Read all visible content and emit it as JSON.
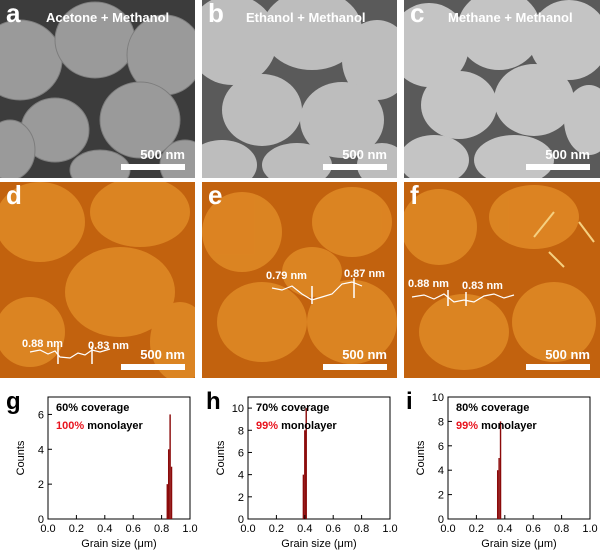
{
  "sem_panels": [
    {
      "label": "a",
      "title": "Acetone + Methanol",
      "scale": "500 nm"
    },
    {
      "label": "b",
      "title": "Ethanol + Methanol",
      "scale": "500 nm"
    },
    {
      "label": "c",
      "title": "Methane + Methanol",
      "scale": "500 nm"
    }
  ],
  "afm_panels": [
    {
      "label": "d",
      "height1": "0.88 nm",
      "height2": "0.83 nm",
      "scale": "500 nm"
    },
    {
      "label": "e",
      "height1": "0.79 nm",
      "height2": "0.87 nm",
      "scale": "500 nm"
    },
    {
      "label": "f",
      "height1": "0.88 nm",
      "height2": "0.83 nm",
      "scale": "500 nm"
    }
  ],
  "colors": {
    "sem_substrate_a": "#3c3c3c",
    "sem_grain_a": "#9a9a9a",
    "sem_substrate_bc": "#5a5a5a",
    "sem_grain_bc": "#bdbdbd",
    "afm_bg": "#c2620e",
    "afm_grain": "#e08a26",
    "bar": "#8b0a0a",
    "highlight": "#e8141e"
  },
  "chart_data": [
    {
      "type": "bar",
      "panel": "g",
      "annotation1": "60% coverage",
      "annotation2_pct": "100%",
      "annotation2_text": "monolayer",
      "xlabel": "Grain size (μm)",
      "ylabel": "Counts",
      "xlim": [
        0.0,
        1.0
      ],
      "ylim": [
        0,
        7
      ],
      "xticks": [
        "0.0",
        "0.2",
        "0.4",
        "0.6",
        "0.8",
        "1.0"
      ],
      "yticks": [
        "0",
        "2",
        "4",
        "6"
      ],
      "x": [
        0.84,
        0.85,
        0.86,
        0.87
      ],
      "values": [
        2,
        4,
        6,
        3
      ]
    },
    {
      "type": "bar",
      "panel": "h",
      "annotation1": "70% coverage",
      "annotation2_pct": "99%",
      "annotation2_text": "monolayer",
      "xlabel": "Grain size (μm)",
      "ylabel": "Counts",
      "xlim": [
        0.0,
        1.0
      ],
      "ylim": [
        0,
        11
      ],
      "xticks": [
        "0.0",
        "0.2",
        "0.4",
        "0.6",
        "0.8",
        "1.0"
      ],
      "yticks": [
        "0",
        "2",
        "4",
        "6",
        "8",
        "10"
      ],
      "x": [
        0.39,
        0.4,
        0.41
      ],
      "values": [
        4,
        8,
        10
      ]
    },
    {
      "type": "bar",
      "panel": "i",
      "annotation1": "80% coverage",
      "annotation2_pct": "99%",
      "annotation2_text": "monolayer",
      "xlabel": "Grain size (μm)",
      "ylabel": "Counts",
      "xlim": [
        0.0,
        1.0
      ],
      "ylim": [
        0,
        10
      ],
      "xticks": [
        "0.0",
        "0.2",
        "0.4",
        "0.6",
        "0.8",
        "1.0"
      ],
      "yticks": [
        "0",
        "2",
        "4",
        "6",
        "8",
        "10"
      ],
      "x": [
        0.35,
        0.36,
        0.37
      ],
      "values": [
        4,
        5,
        8
      ]
    }
  ]
}
